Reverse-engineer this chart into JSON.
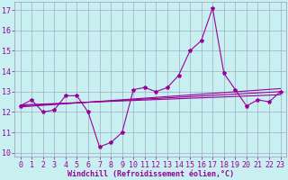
{
  "xlabel": "Windchill (Refroidissement éolien,°C)",
  "bg_color": "#c8f0f0",
  "grid_color": "#9999bb",
  "line_color": "#990099",
  "x_hours": [
    0,
    1,
    2,
    3,
    4,
    5,
    6,
    7,
    8,
    9,
    10,
    11,
    12,
    13,
    14,
    15,
    16,
    17,
    18,
    19,
    20,
    21,
    22,
    23
  ],
  "windchill": [
    12.3,
    12.6,
    12.0,
    12.1,
    12.8,
    12.8,
    12.0,
    10.3,
    10.5,
    11.0,
    13.1,
    13.2,
    13.0,
    13.2,
    13.8,
    15.0,
    15.5,
    17.1,
    13.9,
    13.1,
    12.3,
    12.6,
    12.5,
    13.0
  ],
  "trend1_x": [
    0,
    23
  ],
  "trend1_y": [
    12.25,
    13.15
  ],
  "trend2_x": [
    0,
    23
  ],
  "trend2_y": [
    12.35,
    12.85
  ],
  "trend3_x": [
    0,
    23
  ],
  "trend3_y": [
    12.3,
    13.0
  ],
  "ylim_min": 9.8,
  "ylim_max": 17.4,
  "yticks": [
    10,
    11,
    12,
    13,
    14,
    15,
    16,
    17
  ],
  "xticks": [
    0,
    1,
    2,
    3,
    4,
    5,
    6,
    7,
    8,
    9,
    10,
    11,
    12,
    13,
    14,
    15,
    16,
    17,
    18,
    19,
    20,
    21,
    22,
    23
  ],
  "xlabel_fontsize": 6,
  "tick_fontsize": 6,
  "line_width": 0.8,
  "marker_size": 3
}
